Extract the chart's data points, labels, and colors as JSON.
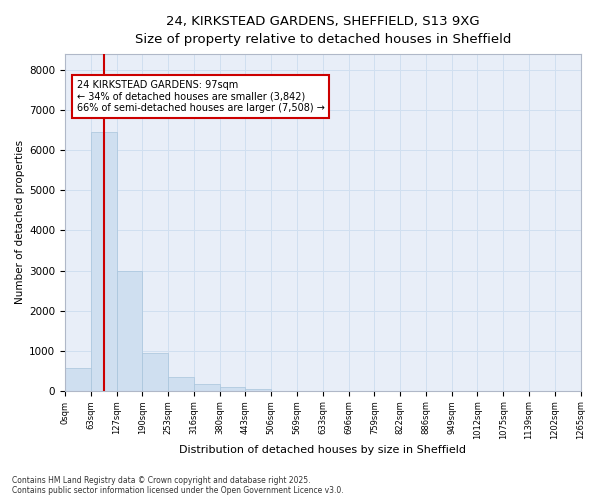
{
  "title_line1": "24, KIRKSTEAD GARDENS, SHEFFIELD, S13 9XG",
  "title_line2": "Size of property relative to detached houses in Sheffield",
  "xlabel": "Distribution of detached houses by size in Sheffield",
  "ylabel": "Number of detached properties",
  "bar_color": "#cfdff0",
  "bar_edge_color": "#a8c4dc",
  "grid_color": "#d0dff0",
  "vline_color": "#cc0000",
  "annotation_text": "24 KIRKSTEAD GARDENS: 97sqm\n← 34% of detached houses are smaller (3,842)\n66% of semi-detached houses are larger (7,508) →",
  "annotation_box_color": "#ffffff",
  "annotation_box_edge": "#cc0000",
  "bin_labels": [
    "0sqm",
    "63sqm",
    "127sqm",
    "190sqm",
    "253sqm",
    "316sqm",
    "380sqm",
    "443sqm",
    "506sqm",
    "569sqm",
    "633sqm",
    "696sqm",
    "759sqm",
    "822sqm",
    "886sqm",
    "949sqm",
    "1012sqm",
    "1075sqm",
    "1139sqm",
    "1202sqm",
    "1265sqm"
  ],
  "bar_heights": [
    560,
    6450,
    2980,
    950,
    350,
    160,
    90,
    55,
    0,
    0,
    0,
    0,
    0,
    0,
    0,
    0,
    0,
    0,
    0,
    0
  ],
  "ylim": [
    0,
    8400
  ],
  "yticks": [
    0,
    1000,
    2000,
    3000,
    4000,
    5000,
    6000,
    7000,
    8000
  ],
  "footnote": "Contains HM Land Registry data © Crown copyright and database right 2025.\nContains public sector information licensed under the Open Government Licence v3.0.",
  "background_color": "#ffffff",
  "plot_bg_color": "#e8eef8"
}
